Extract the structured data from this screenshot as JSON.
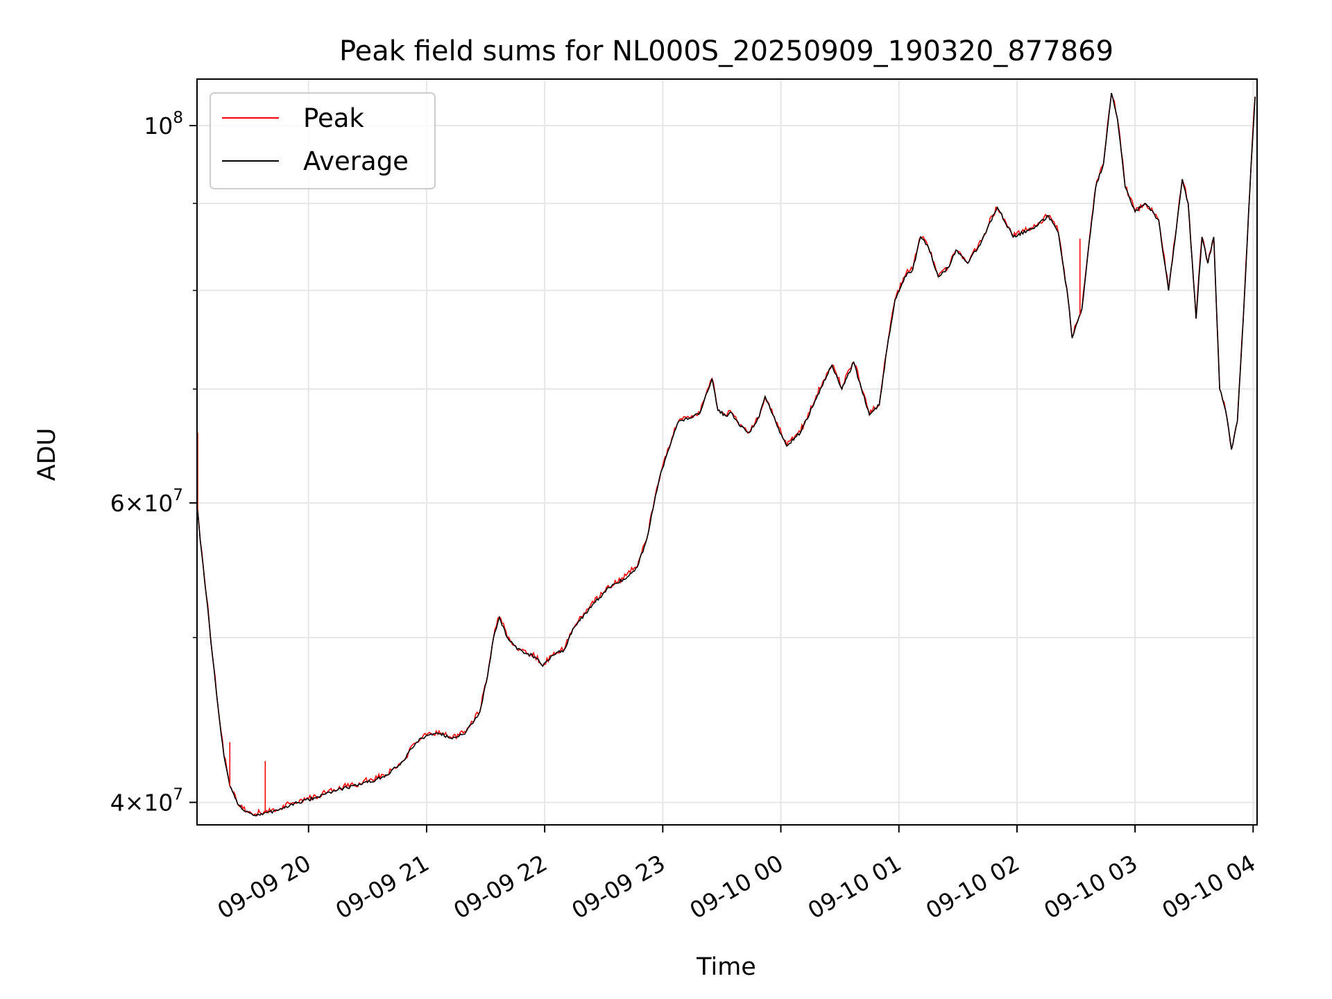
{
  "chart_data": {
    "type": "line",
    "title": "Peak field sums for NL000S_20250909_190320_877869",
    "xlabel": "Time",
    "ylabel": "ADU",
    "y_scale": "log",
    "ylim": [
      38800000,
      106500000
    ],
    "xlim": [
      "2025-09-09 19:03:20",
      "2025-09-10 04:02:00"
    ],
    "grid": true,
    "legend_position": "top-left",
    "x_ticks": [
      {
        "t": "2025-09-09 20:00",
        "label": "09-09 20"
      },
      {
        "t": "2025-09-09 21:00",
        "label": "09-09 21"
      },
      {
        "t": "2025-09-09 22:00",
        "label": "09-09 22"
      },
      {
        "t": "2025-09-09 23:00",
        "label": "09-09 23"
      },
      {
        "t": "2025-09-10 00:00",
        "label": "09-10 00"
      },
      {
        "t": "2025-09-10 01:00",
        "label": "09-10 01"
      },
      {
        "t": "2025-09-10 02:00",
        "label": "09-10 02"
      },
      {
        "t": "2025-09-10 03:00",
        "label": "09-10 03"
      },
      {
        "t": "2025-09-10 04:00",
        "label": "09-10 04"
      }
    ],
    "y_major_ticks": [
      {
        "value": 40000000,
        "base": "4",
        "exp": "7"
      },
      {
        "value": 60000000,
        "base": "6",
        "exp": "7"
      },
      {
        "value": 100000000,
        "base": "",
        "exp": "8"
      }
    ],
    "y_minor_ticks": [
      50000000,
      70000000,
      80000000,
      90000000
    ],
    "series": [
      {
        "name": "Peak",
        "color": "#ff0000"
      },
      {
        "name": "Average",
        "color": "#000000"
      }
    ],
    "average_points": [
      [
        "2025-09-09 19:03:20",
        60000000
      ],
      [
        "2025-09-09 19:05",
        57000000
      ],
      [
        "2025-09-09 19:08",
        53000000
      ],
      [
        "2025-09-09 19:11",
        49000000
      ],
      [
        "2025-09-09 19:14",
        45500000
      ],
      [
        "2025-09-09 19:17",
        42600000
      ],
      [
        "2025-09-09 19:20",
        40900000
      ],
      [
        "2025-09-09 19:24",
        39900000
      ],
      [
        "2025-09-09 19:28",
        39500000
      ],
      [
        "2025-09-09 19:32",
        39300000
      ],
      [
        "2025-09-09 19:36",
        39400000
      ],
      [
        "2025-09-09 19:45",
        39600000
      ],
      [
        "2025-09-09 19:55",
        40000000
      ],
      [
        "2025-09-09 20:05",
        40300000
      ],
      [
        "2025-09-09 20:15",
        40700000
      ],
      [
        "2025-09-09 20:30",
        41100000
      ],
      [
        "2025-09-09 20:40",
        41500000
      ],
      [
        "2025-09-09 20:48",
        42300000
      ],
      [
        "2025-09-09 20:55",
        43400000
      ],
      [
        "2025-09-09 21:00",
        43800000
      ],
      [
        "2025-09-09 21:07",
        43900000
      ],
      [
        "2025-09-09 21:13",
        43600000
      ],
      [
        "2025-09-09 21:20",
        44000000
      ],
      [
        "2025-09-09 21:27",
        45200000
      ],
      [
        "2025-09-09 21:31",
        47500000
      ],
      [
        "2025-09-09 21:34",
        50000000
      ],
      [
        "2025-09-09 21:37",
        51400000
      ],
      [
        "2025-09-09 21:41",
        50000000
      ],
      [
        "2025-09-09 21:46",
        49200000
      ],
      [
        "2025-09-09 21:55",
        48700000
      ],
      [
        "2025-09-09 21:59",
        48100000
      ],
      [
        "2025-09-09 22:04",
        48800000
      ],
      [
        "2025-09-09 22:10",
        49200000
      ],
      [
        "2025-09-09 22:15",
        50700000
      ],
      [
        "2025-09-09 22:25",
        52400000
      ],
      [
        "2025-09-09 22:33",
        53500000
      ],
      [
        "2025-09-09 22:40",
        54100000
      ],
      [
        "2025-09-09 22:47",
        55000000
      ],
      [
        "2025-09-09 22:52",
        57200000
      ],
      [
        "2025-09-09 22:55",
        59500000
      ],
      [
        "2025-09-09 22:59",
        62500000
      ],
      [
        "2025-09-09 23:04",
        65000000
      ],
      [
        "2025-09-09 23:08",
        67000000
      ],
      [
        "2025-09-09 23:14",
        67300000
      ],
      [
        "2025-09-09 23:19",
        67800000
      ],
      [
        "2025-09-09 23:22",
        69500000
      ],
      [
        "2025-09-09 23:25",
        71000000
      ],
      [
        "2025-09-09 23:28",
        68000000
      ],
      [
        "2025-09-09 23:32",
        67500000
      ],
      [
        "2025-09-09 23:35",
        67800000
      ],
      [
        "2025-09-09 23:39",
        66600000
      ],
      [
        "2025-09-09 23:44",
        66000000
      ],
      [
        "2025-09-09 23:49",
        67400000
      ],
      [
        "2025-09-09 23:52",
        69300000
      ],
      [
        "2025-09-09 23:56",
        67600000
      ],
      [
        "2025-09-10 00:01",
        65500000
      ],
      [
        "2025-09-10 00:03",
        64800000
      ],
      [
        "2025-09-10 00:10",
        66000000
      ],
      [
        "2025-09-10 00:16",
        68300000
      ],
      [
        "2025-09-10 00:20",
        70000000
      ],
      [
        "2025-09-10 00:26",
        72300000
      ],
      [
        "2025-09-10 00:31",
        70000000
      ],
      [
        "2025-09-10 00:37",
        72600000
      ],
      [
        "2025-09-10 00:41",
        70000000
      ],
      [
        "2025-09-10 00:45",
        67600000
      ],
      [
        "2025-09-10 00:50",
        68500000
      ],
      [
        "2025-09-10 00:54",
        74000000
      ],
      [
        "2025-09-10 00:58",
        79000000
      ],
      [
        "2025-09-10 01:03",
        81500000
      ],
      [
        "2025-09-10 01:07",
        82300000
      ],
      [
        "2025-09-10 01:11",
        86000000
      ],
      [
        "2025-09-10 01:15",
        84800000
      ],
      [
        "2025-09-10 01:20",
        81500000
      ],
      [
        "2025-09-10 01:25",
        82500000
      ],
      [
        "2025-09-10 01:29",
        84500000
      ],
      [
        "2025-09-10 01:35",
        83000000
      ],
      [
        "2025-09-10 01:42",
        85500000
      ],
      [
        "2025-09-10 01:50",
        89500000
      ],
      [
        "2025-09-10 01:58",
        86000000
      ],
      [
        "2025-09-10 02:08",
        87000000
      ],
      [
        "2025-09-10 02:16",
        88500000
      ],
      [
        "2025-09-10 02:21",
        86500000
      ],
      [
        "2025-09-10 02:26",
        79000000
      ],
      [
        "2025-09-10 02:28",
        75000000
      ],
      [
        "2025-09-10 02:33",
        78000000
      ],
      [
        "2025-09-10 02:36",
        84000000
      ],
      [
        "2025-09-10 02:40",
        92000000
      ],
      [
        "2025-09-10 02:44",
        95000000
      ],
      [
        "2025-09-10 02:48",
        104500000
      ],
      [
        "2025-09-10 02:51",
        101000000
      ],
      [
        "2025-09-10 02:55",
        92000000
      ],
      [
        "2025-09-10 03:00",
        89000000
      ],
      [
        "2025-09-10 03:05",
        90000000
      ],
      [
        "2025-09-10 03:12",
        88000000
      ],
      [
        "2025-09-10 03:17",
        80000000
      ],
      [
        "2025-09-10 03:21",
        87000000
      ],
      [
        "2025-09-10 03:24",
        93000000
      ],
      [
        "2025-09-10 03:27",
        90000000
      ],
      [
        "2025-09-10 03:31",
        77000000
      ],
      [
        "2025-09-10 03:34",
        86000000
      ],
      [
        "2025-09-10 03:37",
        83000000
      ],
      [
        "2025-09-10 03:40",
        86000000
      ],
      [
        "2025-09-10 03:43",
        70000000
      ],
      [
        "2025-09-10 03:46",
        68000000
      ],
      [
        "2025-09-10 03:49",
        64500000
      ],
      [
        "2025-09-10 03:52",
        67000000
      ],
      [
        "2025-09-10 03:55",
        77000000
      ],
      [
        "2025-09-10 03:59",
        95000000
      ],
      [
        "2025-09-10 04:01",
        104000000
      ]
    ],
    "peak_spikes": [
      [
        "2025-09-09 19:03:40",
        66000000
      ],
      [
        "2025-09-09 19:20",
        43400000
      ],
      [
        "2025-09-09 19:38",
        42300000
      ],
      [
        "2025-09-10 02:32",
        85800000
      ]
    ]
  }
}
